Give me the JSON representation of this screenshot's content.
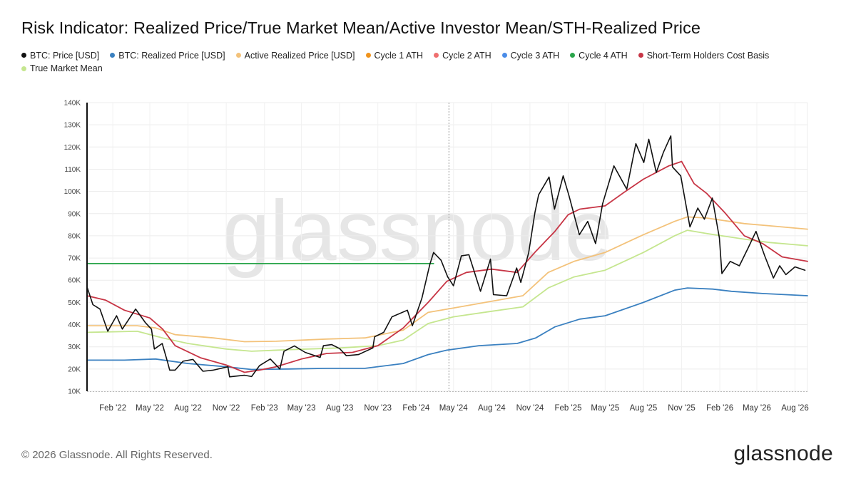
{
  "title": "Risk Indicator: Realized Price/True Market Mean/Active Investor Mean/STH-Realized Price",
  "footer": "© 2026 Glassnode. All Rights Reserved.",
  "logo_text": "glassnode",
  "watermark": "glassnode",
  "chart_data": {
    "type": "line",
    "x_axis": {
      "type": "date",
      "range": [
        "2021-12-01",
        "2026-08-31"
      ],
      "tick_labels": [
        "Feb '22",
        "May '22",
        "Aug '22",
        "Nov '22",
        "Feb '23",
        "May '23",
        "Aug '23",
        "Nov '23",
        "Feb '24",
        "May '24",
        "Aug '24",
        "Nov '24",
        "Feb '25",
        "May '25",
        "Aug '25",
        "Nov '25",
        "Feb '26",
        "May '26",
        "Aug '26"
      ],
      "tick_dates": [
        "2022-02-01",
        "2022-05-01",
        "2022-08-01",
        "2022-11-01",
        "2023-02-01",
        "2023-05-01",
        "2023-08-01",
        "2023-11-01",
        "2024-02-01",
        "2024-05-01",
        "2024-08-01",
        "2024-11-01",
        "2025-02-01",
        "2025-05-01",
        "2025-08-01",
        "2025-11-01",
        "2026-02-01",
        "2026-05-01",
        "2026-08-01"
      ]
    },
    "y_axis": {
      "ylim": [
        10000,
        140000
      ],
      "ticks": [
        10000,
        20000,
        30000,
        40000,
        50000,
        60000,
        70000,
        80000,
        90000,
        100000,
        110000,
        120000,
        130000,
        140000
      ],
      "tick_labels": [
        "10K",
        "20K",
        "30K",
        "40K",
        "50K",
        "60K",
        "70K",
        "80K",
        "90K",
        "100K",
        "110K",
        "120K",
        "130K",
        "140K"
      ]
    },
    "grid": true,
    "legend_placement": "top-left",
    "vertical_marker_date": "2024-04-20",
    "series": [
      {
        "name": "BTC: Price [USD]",
        "color": "#111111",
        "points": [
          [
            "2021-12-01",
            57000
          ],
          [
            "2021-12-15",
            49000
          ],
          [
            "2022-01-01",
            47000
          ],
          [
            "2022-01-20",
            37000
          ],
          [
            "2022-02-10",
            44000
          ],
          [
            "2022-02-24",
            38000
          ],
          [
            "2022-03-28",
            47000
          ],
          [
            "2022-04-20",
            41000
          ],
          [
            "2022-05-05",
            38000
          ],
          [
            "2022-05-12",
            29000
          ],
          [
            "2022-05-31",
            31500
          ],
          [
            "2022-06-13",
            23000
          ],
          [
            "2022-06-18",
            19500
          ],
          [
            "2022-07-01",
            19500
          ],
          [
            "2022-07-20",
            23500
          ],
          [
            "2022-08-13",
            24300
          ],
          [
            "2022-09-06",
            19000
          ],
          [
            "2022-10-01",
            19500
          ],
          [
            "2022-11-05",
            21000
          ],
          [
            "2022-11-09",
            16500
          ],
          [
            "2022-12-15",
            17200
          ],
          [
            "2023-01-01",
            16600
          ],
          [
            "2023-01-20",
            21500
          ],
          [
            "2023-02-15",
            24500
          ],
          [
            "2023-03-10",
            20000
          ],
          [
            "2023-03-20",
            28000
          ],
          [
            "2023-04-14",
            30400
          ],
          [
            "2023-05-10",
            27500
          ],
          [
            "2023-06-15",
            25200
          ],
          [
            "2023-06-23",
            30500
          ],
          [
            "2023-07-13",
            31000
          ],
          [
            "2023-08-01",
            29200
          ],
          [
            "2023-08-17",
            26000
          ],
          [
            "2023-09-15",
            26500
          ],
          [
            "2023-10-20",
            29500
          ],
          [
            "2023-10-24",
            34500
          ],
          [
            "2023-11-15",
            36500
          ],
          [
            "2023-12-05",
            43500
          ],
          [
            "2024-01-11",
            46500
          ],
          [
            "2024-01-23",
            39500
          ],
          [
            "2024-02-15",
            52000
          ],
          [
            "2024-03-05",
            67000
          ],
          [
            "2024-03-14",
            72500
          ],
          [
            "2024-04-01",
            69000
          ],
          [
            "2024-04-17",
            61500
          ],
          [
            "2024-05-01",
            57500
          ],
          [
            "2024-05-20",
            71000
          ],
          [
            "2024-06-07",
            71500
          ],
          [
            "2024-07-05",
            55000
          ],
          [
            "2024-07-29",
            69500
          ],
          [
            "2024-08-05",
            53500
          ],
          [
            "2024-09-06",
            53000
          ],
          [
            "2024-09-30",
            65500
          ],
          [
            "2024-10-10",
            59000
          ],
          [
            "2024-10-29",
            72500
          ],
          [
            "2024-11-13",
            90500
          ],
          [
            "2024-11-22",
            98500
          ],
          [
            "2024-12-17",
            106500
          ],
          [
            "2024-12-30",
            92000
          ],
          [
            "2025-01-20",
            107000
          ],
          [
            "2025-02-03",
            98000
          ],
          [
            "2025-02-28",
            80500
          ],
          [
            "2025-03-20",
            86500
          ],
          [
            "2025-04-08",
            76500
          ],
          [
            "2025-04-25",
            94500
          ],
          [
            "2025-05-22",
            111500
          ],
          [
            "2025-06-22",
            101000
          ],
          [
            "2025-07-14",
            121500
          ],
          [
            "2025-08-02",
            113000
          ],
          [
            "2025-08-14",
            123500
          ],
          [
            "2025-09-01",
            108500
          ],
          [
            "2025-09-18",
            117500
          ],
          [
            "2025-10-06",
            125000
          ],
          [
            "2025-10-10",
            111000
          ],
          [
            "2025-10-30",
            107000
          ],
          [
            "2025-11-21",
            84000
          ],
          [
            "2025-12-10",
            92500
          ],
          [
            "2025-12-26",
            87500
          ],
          [
            "2026-01-14",
            97000
          ],
          [
            "2026-01-31",
            79000
          ],
          [
            "2026-02-06",
            63000
          ],
          [
            "2026-02-26",
            68500
          ],
          [
            "2026-03-20",
            66500
          ],
          [
            "2026-04-10",
            74500
          ],
          [
            "2026-04-29",
            82000
          ],
          [
            "2026-05-20",
            71000
          ],
          [
            "2026-06-10",
            61000
          ],
          [
            "2026-06-25",
            66500
          ],
          [
            "2026-07-10",
            62500
          ],
          [
            "2026-08-01",
            66000
          ],
          [
            "2026-08-25",
            64500
          ]
        ]
      },
      {
        "name": "BTC: Realized Price [USD]",
        "color": "#3a80c0",
        "points": [
          [
            "2021-12-01",
            24000
          ],
          [
            "2022-03-01",
            24000
          ],
          [
            "2022-05-15",
            24500
          ],
          [
            "2022-08-01",
            22500
          ],
          [
            "2022-11-01",
            21000
          ],
          [
            "2023-01-01",
            19800
          ],
          [
            "2023-04-01",
            20000
          ],
          [
            "2023-07-01",
            20300
          ],
          [
            "2023-10-01",
            20300
          ],
          [
            "2024-01-01",
            22500
          ],
          [
            "2024-03-01",
            26500
          ],
          [
            "2024-04-15",
            28500
          ],
          [
            "2024-07-01",
            30500
          ],
          [
            "2024-10-01",
            31500
          ],
          [
            "2024-11-15",
            34000
          ],
          [
            "2024-12-31",
            39000
          ],
          [
            "2025-03-01",
            42500
          ],
          [
            "2025-05-01",
            44000
          ],
          [
            "2025-08-01",
            50000
          ],
          [
            "2025-10-15",
            55500
          ],
          [
            "2025-11-15",
            56500
          ],
          [
            "2026-01-15",
            56000
          ],
          [
            "2026-03-01",
            55000
          ],
          [
            "2026-05-15",
            54000
          ],
          [
            "2026-08-31",
            53000
          ]
        ]
      },
      {
        "name": "Active Realized Price [USD]",
        "color": "#f3c27a",
        "points": [
          [
            "2021-12-01",
            39500
          ],
          [
            "2022-04-01",
            39500
          ],
          [
            "2022-05-15",
            38500
          ],
          [
            "2022-07-01",
            35500
          ],
          [
            "2022-10-01",
            34000
          ],
          [
            "2022-12-15",
            32300
          ],
          [
            "2023-03-01",
            32500
          ],
          [
            "2023-07-01",
            33500
          ],
          [
            "2023-10-01",
            34000
          ],
          [
            "2024-01-01",
            37500
          ],
          [
            "2024-03-01",
            45500
          ],
          [
            "2024-05-01",
            47500
          ],
          [
            "2024-08-01",
            50500
          ],
          [
            "2024-10-15",
            53000
          ],
          [
            "2024-12-15",
            63500
          ],
          [
            "2025-02-15",
            68500
          ],
          [
            "2025-05-01",
            72500
          ],
          [
            "2025-08-01",
            80500
          ],
          [
            "2025-10-15",
            86500
          ],
          [
            "2025-11-15",
            88500
          ],
          [
            "2026-01-01",
            88000
          ],
          [
            "2026-04-01",
            85500
          ],
          [
            "2026-06-01",
            84500
          ],
          [
            "2026-08-31",
            83000
          ]
        ]
      },
      {
        "name": "Cycle 1 ATH",
        "color": "#f0931c",
        "points": []
      },
      {
        "name": "Cycle 2 ATH",
        "color": "#ef6f6f",
        "points": []
      },
      {
        "name": "Cycle 3 ATH",
        "color": "#4a8ce8",
        "points": []
      },
      {
        "name": "Cycle 4 ATH",
        "color": "#2aa54a",
        "points": [
          [
            "2021-12-01",
            67500
          ],
          [
            "2024-03-14",
            67500
          ]
        ]
      },
      {
        "name": "Short-Term Holders Cost Basis",
        "color": "#c73545",
        "points": [
          [
            "2021-12-01",
            53000
          ],
          [
            "2022-01-15",
            51000
          ],
          [
            "2022-03-01",
            46500
          ],
          [
            "2022-05-01",
            43000
          ],
          [
            "2022-06-01",
            38000
          ],
          [
            "2022-07-01",
            30500
          ],
          [
            "2022-09-01",
            25000
          ],
          [
            "2022-11-01",
            21800
          ],
          [
            "2022-12-15",
            18500
          ],
          [
            "2023-01-20",
            19500
          ],
          [
            "2023-03-01",
            21000
          ],
          [
            "2023-05-01",
            24500
          ],
          [
            "2023-07-01",
            27000
          ],
          [
            "2023-09-01",
            27500
          ],
          [
            "2023-11-01",
            30500
          ],
          [
            "2024-01-01",
            38500
          ],
          [
            "2024-03-01",
            50000
          ],
          [
            "2024-04-15",
            59500
          ],
          [
            "2024-06-01",
            63500
          ],
          [
            "2024-08-01",
            65000
          ],
          [
            "2024-10-01",
            63500
          ],
          [
            "2024-11-15",
            73000
          ],
          [
            "2024-12-31",
            82000
          ],
          [
            "2025-02-01",
            89500
          ],
          [
            "2025-03-01",
            92000
          ],
          [
            "2025-05-01",
            93500
          ],
          [
            "2025-06-15",
            99500
          ],
          [
            "2025-08-01",
            105500
          ],
          [
            "2025-10-01",
            111500
          ],
          [
            "2025-11-01",
            113500
          ],
          [
            "2025-12-01",
            103500
          ],
          [
            "2026-01-01",
            99000
          ],
          [
            "2026-02-15",
            90000
          ],
          [
            "2026-04-01",
            80000
          ],
          [
            "2026-05-15",
            76500
          ],
          [
            "2026-07-01",
            70500
          ],
          [
            "2026-08-31",
            68500
          ]
        ]
      },
      {
        "name": "True Market Mean",
        "color": "#c5e68f",
        "points": [
          [
            "2021-12-01",
            36500
          ],
          [
            "2022-04-01",
            37000
          ],
          [
            "2022-06-01",
            34000
          ],
          [
            "2022-08-01",
            31500
          ],
          [
            "2022-11-01",
            29000
          ],
          [
            "2023-01-01",
            28000
          ],
          [
            "2023-04-01",
            28700
          ],
          [
            "2023-08-01",
            29500
          ],
          [
            "2023-11-01",
            30500
          ],
          [
            "2024-01-01",
            33000
          ],
          [
            "2024-03-01",
            40500
          ],
          [
            "2024-05-01",
            43500
          ],
          [
            "2024-08-01",
            46000
          ],
          [
            "2024-10-15",
            48000
          ],
          [
            "2024-12-15",
            56500
          ],
          [
            "2025-02-15",
            61500
          ],
          [
            "2025-05-01",
            64500
          ],
          [
            "2025-08-01",
            72500
          ],
          [
            "2025-10-15",
            80000
          ],
          [
            "2025-11-15",
            82500
          ],
          [
            "2026-01-01",
            81000
          ],
          [
            "2026-04-01",
            78500
          ],
          [
            "2026-06-01",
            77000
          ],
          [
            "2026-08-31",
            75500
          ]
        ]
      }
    ]
  }
}
